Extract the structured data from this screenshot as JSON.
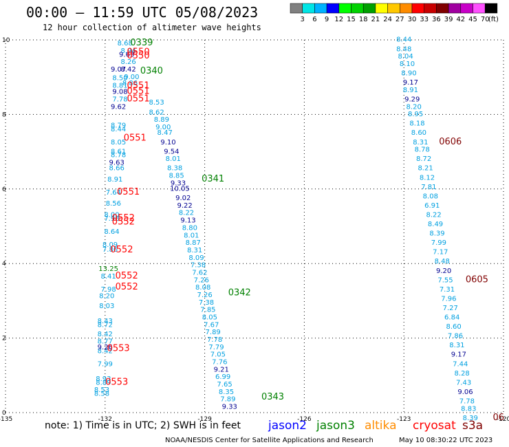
{
  "header": {
    "title": "00:00 – 11:59 UTC 05/08/2023",
    "subtitle": "12 hour collection of altimeter wave heights"
  },
  "color_scale": {
    "colors": [
      "#808080",
      "#00e5e5",
      "#00b2ff",
      "#0000ff",
      "#00ff00",
      "#00d200",
      "#00a000",
      "#ffff00",
      "#ffc800",
      "#ff8c00",
      "#ff0000",
      "#c80000",
      "#800000",
      "#a000a0",
      "#c800c8",
      "#ff50ff",
      "#000000"
    ],
    "labels": [
      "3",
      "6",
      "9",
      "12",
      "15",
      "18",
      "21",
      "24",
      "27",
      "30",
      "33",
      "36",
      "39",
      "42",
      "45",
      "70"
    ],
    "unit": "(ft)"
  },
  "footer": {
    "note": "note: 1) Time is in UTC; 2) SWH is in feet",
    "legend": [
      {
        "name": "jason2",
        "color": "#0000ff"
      },
      {
        "name": "jason3",
        "color": "#008000"
      },
      {
        "name": "altika",
        "color": "#ff8c00"
      },
      {
        "name": "cryosat",
        "color": "#ff0000"
      },
      {
        "name": "s3a",
        "color": "#800000"
      }
    ],
    "credit": "NOAA/NESDIS Center for Satellite Applications and Research",
    "timestamp": "May 10 08:30:22 UTC 2023"
  },
  "chart_data": {
    "type": "scatter",
    "title": "00:00 – 11:59 UTC 05/08/2023",
    "x_ticks": [
      "-135",
      "-132",
      "-129",
      "-126",
      "-123",
      "-120"
    ],
    "y_ticks": [
      "0",
      "2",
      "4",
      "6",
      "8",
      "10"
    ],
    "xlim": [
      -135,
      -120
    ],
    "ylim": [
      0,
      10
    ],
    "grid": true,
    "colors": {
      "c": "#00a0e0",
      "d": "#000090",
      "t": "#008000",
      "r": "#ff0000",
      "m": "#800000"
    },
    "series": [
      {
        "name": "track-cryosat-west",
        "points": [
          [
            "8.68",
            -131.4,
            9.85,
            "c"
          ],
          [
            "8.94",
            -131.3,
            9.65,
            "c"
          ],
          [
            "9.63",
            -131.35,
            9.55,
            "d"
          ],
          [
            "8.26",
            -131.3,
            9.35,
            "c"
          ],
          [
            "9.07",
            -131.6,
            9.15,
            "d"
          ],
          [
            "8.42",
            -131.3,
            9.15,
            "d"
          ],
          [
            "9.00",
            -131.2,
            8.95,
            "c"
          ],
          [
            "8.50",
            -131.55,
            8.92,
            "c"
          ],
          [
            "8.81",
            -131.55,
            8.72,
            "c"
          ],
          [
            "8.86",
            -131.25,
            8.78,
            "c"
          ],
          [
            "9.08",
            -131.55,
            8.55,
            "d"
          ],
          [
            "7.78",
            -131.55,
            8.35,
            "c"
          ],
          [
            "9.62",
            -131.6,
            8.15,
            "d"
          ],
          [
            "8.79",
            -131.6,
            7.65,
            "c"
          ],
          [
            "8.44",
            -131.6,
            7.55,
            "c"
          ],
          [
            "8.05",
            -131.6,
            7.2,
            "c"
          ],
          [
            "8.61",
            -131.6,
            6.95,
            "c"
          ],
          [
            "8.78",
            -131.6,
            6.85,
            "c"
          ],
          [
            "9.63",
            -131.65,
            6.65,
            "d"
          ],
          [
            "8.66",
            -131.65,
            6.5,
            "c"
          ],
          [
            "8.91",
            -131.7,
            6.2,
            "c"
          ],
          [
            "7.64",
            -131.75,
            5.85,
            "c"
          ],
          [
            "8.56",
            -131.75,
            5.55,
            "c"
          ],
          [
            "8.00",
            -131.8,
            5.25,
            "c"
          ],
          [
            "7.98",
            -131.8,
            5.15,
            "c"
          ],
          [
            "8.64",
            -131.8,
            4.8,
            "c"
          ],
          [
            "8.09",
            -131.85,
            4.45,
            "c"
          ],
          [
            "7.86",
            -131.85,
            4.32,
            "c"
          ],
          [
            "8.41",
            -131.9,
            3.6,
            "c"
          ],
          [
            "7.98",
            -131.9,
            3.25,
            "c"
          ],
          [
            "8.20",
            -131.95,
            3.07,
            "c"
          ],
          [
            "8.03",
            -131.95,
            2.8,
            "c"
          ],
          [
            "8.43",
            -132.0,
            2.4,
            "c"
          ],
          [
            "8.72",
            -132.0,
            2.3,
            "c"
          ],
          [
            "8.42",
            -132.0,
            2.05,
            "c"
          ],
          [
            "8.77",
            -132.0,
            1.85,
            "c"
          ],
          [
            "8.42",
            -132.0,
            1.6,
            "c"
          ],
          [
            "9.26",
            -132.0,
            1.7,
            "d"
          ],
          [
            "7.99",
            -132.0,
            1.25,
            "c"
          ],
          [
            "8.93",
            -132.05,
            0.85,
            "c"
          ],
          [
            "8.89",
            -132.05,
            0.75,
            "c"
          ],
          [
            "8.53",
            -132.1,
            0.55,
            "c"
          ],
          [
            "8.58",
            -132.1,
            0.45,
            "c"
          ],
          [
            "13.25",
            -131.9,
            3.8,
            "t"
          ]
        ]
      },
      {
        "name": "track-jason3-center",
        "points": [
          [
            "8.53",
            -130.45,
            8.27,
            "c"
          ],
          [
            "8.62",
            -130.45,
            8.0,
            "c"
          ],
          [
            "8.89",
            -130.3,
            7.8,
            "c"
          ],
          [
            "9.00",
            -130.25,
            7.6,
            "c"
          ],
          [
            "8.47",
            -130.2,
            7.45,
            "c"
          ],
          [
            "9.10",
            -130.1,
            7.2,
            "d"
          ],
          [
            "9.54",
            -130.0,
            6.95,
            "d"
          ],
          [
            "8.01",
            -129.95,
            6.75,
            "c"
          ],
          [
            "8.38",
            -129.9,
            6.5,
            "c"
          ],
          [
            "8.85",
            -129.85,
            6.3,
            "c"
          ],
          [
            "9.33",
            -129.8,
            6.1,
            "d"
          ],
          [
            "10.05",
            -129.75,
            5.95,
            "d"
          ],
          [
            "9.02",
            -129.65,
            5.7,
            "d"
          ],
          [
            "9.22",
            -129.6,
            5.5,
            "d"
          ],
          [
            "8.22",
            -129.55,
            5.3,
            "c"
          ],
          [
            "9.13",
            -129.5,
            5.1,
            "d"
          ],
          [
            "8.80",
            -129.45,
            4.9,
            "c"
          ],
          [
            "8.01",
            -129.4,
            4.7,
            "c"
          ],
          [
            "8.87",
            -129.35,
            4.5,
            "c"
          ],
          [
            "8.31",
            -129.3,
            4.3,
            "c"
          ],
          [
            "8.09",
            -129.25,
            4.1,
            "c"
          ],
          [
            "7.38",
            -129.2,
            3.9,
            "c"
          ],
          [
            "7.62",
            -129.15,
            3.7,
            "c"
          ],
          [
            "7.26",
            -129.1,
            3.5,
            "c"
          ],
          [
            "8.08",
            -129.05,
            3.3,
            "c"
          ],
          [
            "7.26",
            -129.0,
            3.1,
            "c"
          ],
          [
            "7.38",
            -128.95,
            2.9,
            "c"
          ],
          [
            "7.85",
            -128.9,
            2.7,
            "c"
          ],
          [
            "8.05",
            -128.85,
            2.5,
            "c"
          ],
          [
            "7.67",
            -128.8,
            2.3,
            "c"
          ],
          [
            "7.89",
            -128.75,
            2.1,
            "c"
          ],
          [
            "7.78",
            -128.7,
            1.9,
            "c"
          ],
          [
            "7.79",
            -128.65,
            1.7,
            "c"
          ],
          [
            "7.05",
            -128.6,
            1.5,
            "c"
          ],
          [
            "7.76",
            -128.55,
            1.3,
            "c"
          ],
          [
            "9.21",
            -128.5,
            1.1,
            "d"
          ],
          [
            "6.99",
            -128.45,
            0.9,
            "c"
          ],
          [
            "7.65",
            -128.4,
            0.7,
            "c"
          ],
          [
            "8.35",
            -128.35,
            0.5,
            "c"
          ],
          [
            "7.89",
            -128.3,
            0.3,
            "c"
          ],
          [
            "9.33",
            -128.25,
            0.1,
            "d"
          ]
        ]
      },
      {
        "name": "track-s3a-east",
        "points": [
          [
            "8.44",
            -123.0,
            9.95,
            "c"
          ],
          [
            "8.48",
            -123.0,
            9.7,
            "c"
          ],
          [
            "8.04",
            -122.95,
            9.5,
            "c"
          ],
          [
            "8.10",
            -122.9,
            9.3,
            "c"
          ],
          [
            "8.90",
            -122.85,
            9.05,
            "c"
          ],
          [
            "9.17",
            -122.8,
            8.8,
            "d"
          ],
          [
            "8.91",
            -122.8,
            8.6,
            "c"
          ],
          [
            "9.29",
            -122.75,
            8.35,
            "d"
          ],
          [
            "8.20",
            -122.7,
            8.15,
            "c"
          ],
          [
            "8.95",
            -122.65,
            7.95,
            "c"
          ],
          [
            "8.18",
            -122.6,
            7.7,
            "c"
          ],
          [
            "8.60",
            -122.55,
            7.45,
            "c"
          ],
          [
            "8.31",
            -122.5,
            7.2,
            "c"
          ],
          [
            "8.78",
            -122.45,
            7.0,
            "c"
          ],
          [
            "8.72",
            -122.4,
            6.75,
            "c"
          ],
          [
            "8.21",
            -122.35,
            6.5,
            "c"
          ],
          [
            "8.12",
            -122.3,
            6.25,
            "c"
          ],
          [
            "7.81",
            -122.25,
            6.0,
            "c"
          ],
          [
            "8.08",
            -122.2,
            5.75,
            "c"
          ],
          [
            "6.91",
            -122.15,
            5.5,
            "c"
          ],
          [
            "8.22",
            -122.1,
            5.25,
            "c"
          ],
          [
            "8.49",
            -122.05,
            5.0,
            "c"
          ],
          [
            "8.39",
            -122.0,
            4.75,
            "c"
          ],
          [
            "7.99",
            -121.95,
            4.5,
            "c"
          ],
          [
            "7.17",
            -121.9,
            4.25,
            "c"
          ],
          [
            "8.48",
            -121.85,
            4.0,
            "c"
          ],
          [
            "9.20",
            -121.8,
            3.75,
            "d"
          ],
          [
            "7.55",
            -121.75,
            3.5,
            "c"
          ],
          [
            "7.31",
            -121.7,
            3.25,
            "c"
          ],
          [
            "7.96",
            -121.65,
            3.0,
            "c"
          ],
          [
            "7.27",
            -121.6,
            2.75,
            "c"
          ],
          [
            "6.84",
            -121.55,
            2.5,
            "c"
          ],
          [
            "8.60",
            -121.5,
            2.25,
            "c"
          ],
          [
            "7.86",
            -121.45,
            2.0,
            "c"
          ],
          [
            "8.31",
            -121.4,
            1.75,
            "c"
          ],
          [
            "9.17",
            -121.35,
            1.5,
            "d"
          ],
          [
            "7.44",
            -121.3,
            1.25,
            "c"
          ],
          [
            "8.28",
            -121.25,
            1.0,
            "c"
          ],
          [
            "7.43",
            -121.2,
            0.75,
            "c"
          ],
          [
            "9.06",
            -121.15,
            0.5,
            "d"
          ],
          [
            "7.78",
            -121.1,
            0.25,
            "c"
          ],
          [
            "8.83",
            -121.05,
            0.05,
            "c"
          ],
          [
            "8.39",
            -121.0,
            -0.2,
            "c"
          ]
        ]
      },
      {
        "name": "time-labels",
        "points": [
          [
            "0339",
            -130.9,
            9.85,
            "t"
          ],
          [
            "0550",
            -131.0,
            9.6,
            "r"
          ],
          [
            "0550",
            -131.0,
            9.5,
            "r"
          ],
          [
            "0340",
            -130.6,
            9.1,
            "t"
          ],
          [
            "0551",
            -131.0,
            8.7,
            "r"
          ],
          [
            "0551",
            -131.0,
            8.55,
            "r"
          ],
          [
            "0551",
            -131.0,
            8.35,
            "r"
          ],
          [
            "0551",
            -131.1,
            7.3,
            "r"
          ],
          [
            "0341",
            -128.75,
            6.2,
            "t"
          ],
          [
            "0551",
            -131.3,
            5.85,
            "r"
          ],
          [
            "0552",
            -131.45,
            5.15,
            "r"
          ],
          [
            "0552",
            -131.45,
            5.05,
            "r"
          ],
          [
            "0552",
            -131.5,
            4.3,
            "r"
          ],
          [
            "0552",
            -131.35,
            3.6,
            "r"
          ],
          [
            "0552",
            -131.35,
            3.3,
            "r"
          ],
          [
            "0342",
            -127.95,
            3.15,
            "t"
          ],
          [
            "0553",
            -131.6,
            1.65,
            "r"
          ],
          [
            "0553",
            -131.65,
            0.75,
            "r"
          ],
          [
            "0343",
            -126.95,
            0.35,
            "t"
          ],
          [
            "0606",
            -121.6,
            7.2,
            "m"
          ],
          [
            "0605",
            -120.8,
            3.5,
            "m"
          ],
          [
            "06",
            -120.15,
            -0.2,
            "m"
          ]
        ]
      }
    ]
  }
}
